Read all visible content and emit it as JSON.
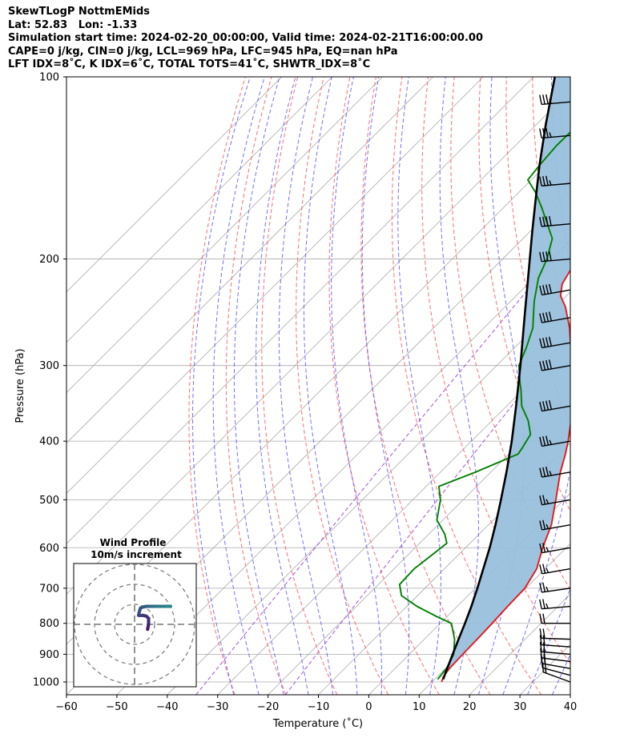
{
  "header": {
    "line1": "SkewTLogP NottmEMids",
    "line2": "Lat: 52.83   Lon: -1.33",
    "line3": "Simulation start time: 2024-02-20_00:00:00, Valid time: 2024-02-21T16:00:00.00",
    "line4": "CAPE=0 j/kg, CIN=0 j/kg, LCL=969 hPa, LFC=945 hPa, EQ=nan hPa",
    "line5": "LFT IDX=8˚C, K IDX=6˚C, TOTAL TOTS=41˚C, SHWTR_IDX=8˚C"
  },
  "chart_data": {
    "type": "line",
    "subtype": "skew-t log-p",
    "xlabel": "Temperature (˚C)",
    "ylabel": "Pressure (hPa)",
    "xlim": [
      -60,
      40
    ],
    "ylim": [
      1050,
      100
    ],
    "y_scale": "log",
    "grid": true,
    "x_ticks": [
      "−60",
      "−50",
      "−40",
      "−30",
      "−20",
      "−10",
      "0",
      "10",
      "20",
      "30",
      "40"
    ],
    "y_ticks": [
      "100",
      "200",
      "300",
      "400",
      "500",
      "600",
      "700",
      "800",
      "900",
      "1000"
    ],
    "series": [
      {
        "color": "#e31a1c",
        "line": "solid",
        "points": [
          [
            1000,
            11.9
          ],
          [
            980,
            11.2
          ],
          [
            950,
            10.8
          ],
          [
            900,
            10.6
          ],
          [
            850,
            10.5
          ],
          [
            800,
            10.3
          ],
          [
            750,
            10.0
          ],
          [
            700,
            9.8
          ],
          [
            650,
            8.3
          ],
          [
            600,
            5.3
          ],
          [
            550,
            2.5
          ],
          [
            500,
            -1.6
          ],
          [
            450,
            -6.2
          ],
          [
            420,
            -8.8
          ],
          [
            400,
            -10.8
          ],
          [
            370,
            -14.3
          ],
          [
            350,
            -17.2
          ],
          [
            320,
            -21.6
          ],
          [
            300,
            -25.0
          ],
          [
            280,
            -28.9
          ],
          [
            260,
            -33.0
          ],
          [
            240,
            -38.0
          ],
          [
            230,
            -41.2
          ],
          [
            220,
            -43.2
          ],
          [
            200,
            -45.2
          ],
          [
            180,
            -48.7
          ],
          [
            160,
            -51.5
          ],
          [
            140,
            -54.4
          ],
          [
            120,
            -57.6
          ],
          [
            110,
            -59.2
          ],
          [
            100,
            -61.4
          ]
        ]
      },
      {
        "color": "#008000",
        "line": "solid",
        "points": [
          [
            990,
            10.6
          ],
          [
            950,
            10.2
          ],
          [
            900,
            8.8
          ],
          [
            850,
            6.0
          ],
          [
            800,
            2.2
          ],
          [
            780,
            -2.0
          ],
          [
            750,
            -8.0
          ],
          [
            720,
            -13.2
          ],
          [
            690,
            -15.8
          ],
          [
            650,
            -16.0
          ],
          [
            620,
            -15.3
          ],
          [
            590,
            -14.6
          ],
          [
            570,
            -16.8
          ],
          [
            540,
            -21.2
          ],
          [
            500,
            -24.5
          ],
          [
            475,
            -27.5
          ],
          [
            450,
            -23.0
          ],
          [
            420,
            -18.2
          ],
          [
            410,
            -18.6
          ],
          [
            390,
            -19.6
          ],
          [
            370,
            -22.8
          ],
          [
            350,
            -27.0
          ],
          [
            330,
            -30.2
          ],
          [
            320,
            -32.0
          ],
          [
            300,
            -35.6
          ],
          [
            280,
            -37.7
          ],
          [
            260,
            -40.3
          ],
          [
            235,
            -45.3
          ],
          [
            215,
            -49.1
          ],
          [
            200,
            -51.2
          ],
          [
            185,
            -54.2
          ],
          [
            165,
            -62.2
          ],
          [
            155,
            -66.8
          ],
          [
            148,
            -70.7
          ],
          [
            140,
            -71.3
          ],
          [
            130,
            -71.8
          ],
          [
            120,
            -71.7
          ],
          [
            110,
            -71.5
          ],
          [
            100,
            -72.7
          ]
        ]
      },
      {
        "color": "#000000",
        "line": "solid",
        "points": [
          [
            990,
            11.7
          ],
          [
            969,
            11.0
          ],
          [
            900,
            8.6
          ],
          [
            850,
            6.8
          ],
          [
            800,
            4.9
          ],
          [
            750,
            2.8
          ],
          [
            700,
            0.4
          ],
          [
            650,
            -2.3
          ],
          [
            600,
            -5.2
          ],
          [
            550,
            -8.6
          ],
          [
            500,
            -12.5
          ],
          [
            450,
            -16.9
          ],
          [
            400,
            -22.0
          ],
          [
            350,
            -28.1
          ],
          [
            300,
            -35.3
          ],
          [
            250,
            -44.0
          ],
          [
            200,
            -54.6
          ],
          [
            180,
            -59.6
          ],
          [
            160,
            -65.1
          ],
          [
            140,
            -71.3
          ],
          [
            120,
            -78.1
          ],
          [
            100,
            -85.8
          ]
        ]
      }
    ],
    "shaded_area": {
      "between": [
        "#e31a1c",
        "#000000"
      ],
      "color": "#99c0dc"
    },
    "background_lines": {
      "isotherms": {
        "color": "#aaaaaa"
      },
      "dry_adiabats": {
        "color": "#ff5555",
        "line": "dashed"
      },
      "moist_adiabats": {
        "color": "#4d4dff",
        "line": "dashed"
      },
      "mixing_ratio": {
        "color": "#9933cc",
        "line": "dashed"
      }
    },
    "wind_barbs": [
      {
        "p": 1000,
        "speed_kt": 15,
        "dir_deg": 250
      },
      {
        "p": 975,
        "speed_kt": 20,
        "dir_deg": 255
      },
      {
        "p": 950,
        "speed_kt": 20,
        "dir_deg": 260
      },
      {
        "p": 925,
        "speed_kt": 20,
        "dir_deg": 263
      },
      {
        "p": 900,
        "speed_kt": 20,
        "dir_deg": 265
      },
      {
        "p": 875,
        "speed_kt": 20,
        "dir_deg": 266
      },
      {
        "p": 850,
        "speed_kt": 20,
        "dir_deg": 268
      },
      {
        "p": 800,
        "speed_kt": 20,
        "dir_deg": 270
      },
      {
        "p": 750,
        "speed_kt": 25,
        "dir_deg": 275
      },
      {
        "p": 700,
        "speed_kt": 25,
        "dir_deg": 278
      },
      {
        "p": 650,
        "speed_kt": 25,
        "dir_deg": 280
      },
      {
        "p": 600,
        "speed_kt": 25,
        "dir_deg": 280
      },
      {
        "p": 550,
        "speed_kt": 25,
        "dir_deg": 280
      },
      {
        "p": 500,
        "speed_kt": 25,
        "dir_deg": 280
      },
      {
        "p": 450,
        "speed_kt": 35,
        "dir_deg": 280
      },
      {
        "p": 400,
        "speed_kt": 35,
        "dir_deg": 280
      },
      {
        "p": 350,
        "speed_kt": 40,
        "dir_deg": 280
      },
      {
        "p": 300,
        "speed_kt": 40,
        "dir_deg": 280
      },
      {
        "p": 275,
        "speed_kt": 40,
        "dir_deg": 280
      },
      {
        "p": 250,
        "speed_kt": 40,
        "dir_deg": 280
      },
      {
        "p": 225,
        "speed_kt": 40,
        "dir_deg": 280
      },
      {
        "p": 200,
        "speed_kt": 40,
        "dir_deg": 275
      },
      {
        "p": 175,
        "speed_kt": 40,
        "dir_deg": 275
      },
      {
        "p": 150,
        "speed_kt": 35,
        "dir_deg": 275
      },
      {
        "p": 125,
        "speed_kt": 35,
        "dir_deg": 275
      },
      {
        "p": 110,
        "speed_kt": 35,
        "dir_deg": 275
      }
    ],
    "inset": {
      "title": "Wind Profile",
      "subtitle": "10m/s increment",
      "hodograph": [
        [
          6.5,
          -2.5
        ],
        [
          6.6,
          -2.0
        ],
        [
          6.8,
          -1.0
        ],
        [
          7.0,
          0.0
        ],
        [
          7.0,
          1.0
        ],
        [
          7.0,
          2.0
        ],
        [
          7.0,
          3.0
        ],
        [
          6.0,
          4.0
        ],
        [
          5.0,
          4.3
        ],
        [
          4.0,
          4.5
        ],
        [
          3.0,
          4.4
        ],
        [
          2.0,
          4.5
        ],
        [
          2.2,
          5.5
        ],
        [
          2.6,
          7.0
        ],
        [
          3.0,
          8.2
        ],
        [
          4.0,
          8.6
        ],
        [
          5.0,
          8.8
        ],
        [
          6.0,
          9.0
        ],
        [
          7.0,
          9.0
        ],
        [
          8.0,
          9.0
        ],
        [
          9.0,
          9.0
        ],
        [
          10.0,
          9.0
        ],
        [
          11.0,
          9.0
        ],
        [
          12.0,
          9.0
        ],
        [
          14.0,
          9.0
        ],
        [
          16.0,
          9.0
        ],
        [
          18.0,
          9.0
        ]
      ]
    }
  }
}
